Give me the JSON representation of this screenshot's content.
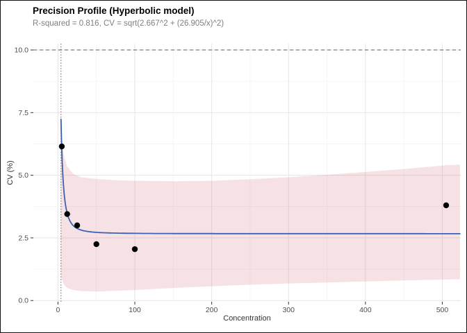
{
  "header": {
    "title": "Precision Profile (Hyperbolic model)",
    "subtitle": "R-squared = 0.816, CV = sqrt(2.667^2 + (26.905/x)^2)"
  },
  "chart_data": {
    "type": "scatter",
    "title": "Precision Profile (Hyperbolic model)",
    "subtitle": "R-squared = 0.816, CV = sqrt(2.667^2 + (26.905/x)^2)",
    "xlabel": "Concentration",
    "ylabel": "CV (%)",
    "xlim": [
      -32,
      524
    ],
    "ylim": [
      -0.05,
      10.25
    ],
    "x_ticks": {
      "values": [
        0,
        100,
        200,
        300,
        400,
        500
      ],
      "labels": [
        "0",
        "100",
        "200",
        "300",
        "400",
        "500"
      ]
    },
    "y_ticks": {
      "values": [
        0,
        2.5,
        5,
        7.5,
        10
      ],
      "labels": [
        "0.0",
        "2.5",
        "5.0",
        "7.5",
        "10.0"
      ]
    },
    "grid": "major+minor",
    "legend": "none",
    "points": [
      [
        5,
        6.15
      ],
      [
        12,
        3.45
      ],
      [
        25,
        3.0
      ],
      [
        50,
        2.25
      ],
      [
        100,
        2.05
      ],
      [
        505,
        3.8
      ]
    ],
    "point_color": "#000000",
    "fit": {
      "model": "hyperbolic",
      "formula": "CV = sqrt(2.667^2 + (26.905/x)^2)",
      "sigma": 2.667,
      "k": 26.905,
      "x_start": 4.0,
      "x_end": 523,
      "color": "#3a62b1",
      "width": 1.8
    },
    "ribbon": {
      "color": "#cf5f6a",
      "opacity": 0.18,
      "x": [
        3.6,
        5,
        8,
        12,
        20,
        30,
        50,
        75,
        100,
        150,
        200,
        250,
        300,
        350,
        400,
        450,
        505,
        523
      ],
      "upper": [
        7.35,
        6.55,
        5.75,
        5.35,
        5.05,
        4.92,
        4.85,
        4.8,
        4.78,
        4.76,
        4.78,
        4.84,
        4.92,
        5.02,
        5.13,
        5.25,
        5.4,
        5.42
      ],
      "lower": [
        1.05,
        0.85,
        0.62,
        0.5,
        0.42,
        0.38,
        0.36,
        0.39,
        0.42,
        0.5,
        0.57,
        0.63,
        0.68,
        0.72,
        0.76,
        0.8,
        0.84,
        0.85
      ]
    },
    "reference_lines": {
      "hline": {
        "y": 10,
        "style": "dashed",
        "color": "#595959"
      },
      "vline": {
        "x": 4.0,
        "style": "dotted",
        "color": "#4d4d4d"
      }
    },
    "panel_bg": "#ffffff",
    "grid_color": "#e6e6e6",
    "grid_minor_color": "#f2f2f2",
    "tick_color": "#333333",
    "tick_label_color": "#4d4d4d"
  }
}
